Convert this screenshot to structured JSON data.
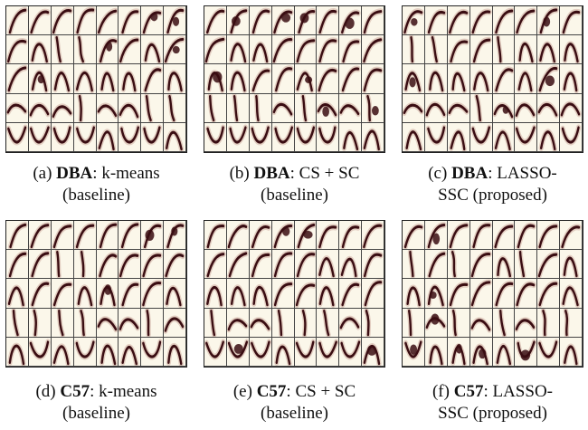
{
  "panels": [
    {
      "label": "(a)",
      "dataset": "DBA",
      "method": "k-means",
      "variant": "(baseline)"
    },
    {
      "label": "(b)",
      "dataset": "DBA",
      "method": "CS + SC",
      "variant": "(baseline)"
    },
    {
      "label": "(c)",
      "dataset": "DBA",
      "method": "LASSO-",
      "method2": "SSC (proposed)"
    },
    {
      "label": "(d)",
      "dataset": "C57",
      "method": "k-means",
      "variant": "(baseline)"
    },
    {
      "label": "(e)",
      "dataset": "C57",
      "method": "CS + SC",
      "variant": "(baseline)"
    },
    {
      "label": "(f)",
      "dataset": "C57",
      "method": "LASSO-",
      "method2": "SSC (proposed)"
    }
  ],
  "colors": {
    "background": "#fbf7ea",
    "curve": "#3a0d12",
    "halo": "#c49a8f"
  }
}
